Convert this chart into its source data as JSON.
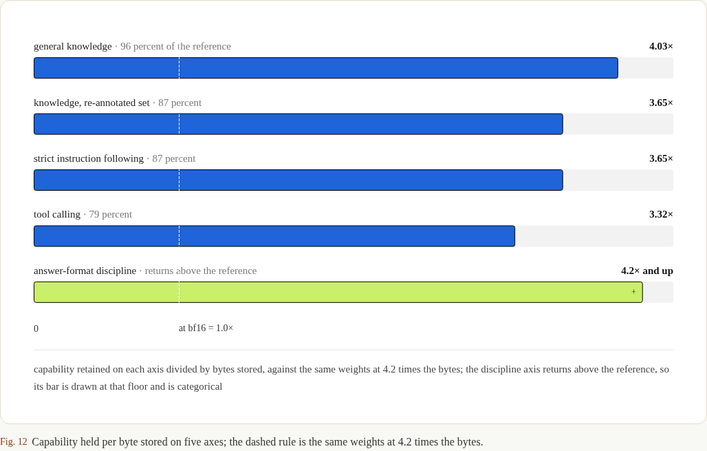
{
  "chart_data": {
    "type": "bar",
    "orientation": "horizontal",
    "title": "Fig. 12 Capability held per byte stored on five axes; the dashed rule is the same weights at 4.2 times the bytes.",
    "categories": [
      "general knowledge · 96 percent of the reference",
      "knowledge, re-annotated set · 87 percent",
      "strict instruction following · 87 percent",
      "tool calling · 79 percent",
      "answer-format discipline · returns above the reference"
    ],
    "values": [
      4.03,
      3.65,
      3.65,
      3.32,
      4.2
    ],
    "colors": [
      "#1f64d8",
      "#1f64d8",
      "#1f64d8",
      "#1f64d8",
      "#c9ef6b"
    ],
    "value_labels": [
      "4.03×",
      "3.65×",
      "3.65×",
      "3.32×",
      "4.2× and up"
    ],
    "ref_lines": [
      {
        "axis": "x",
        "value": 1,
        "label": "at bf16 = 1.0×",
        "color": "#ffffff",
        "line_style": "dashed"
      }
    ],
    "annotations": [
      {
        "text": "+",
        "x": 4.2,
        "y": "answer-format discipline · returns above the reference"
      },
      "0",
      "capability retained on each axis divided by bytes stored, against the same weights at 4.2 times the bytes; the discipline axis returns above the reference, so its bar is drawn at that floor and is categorical"
    ],
    "data_labels": false
  }
}
